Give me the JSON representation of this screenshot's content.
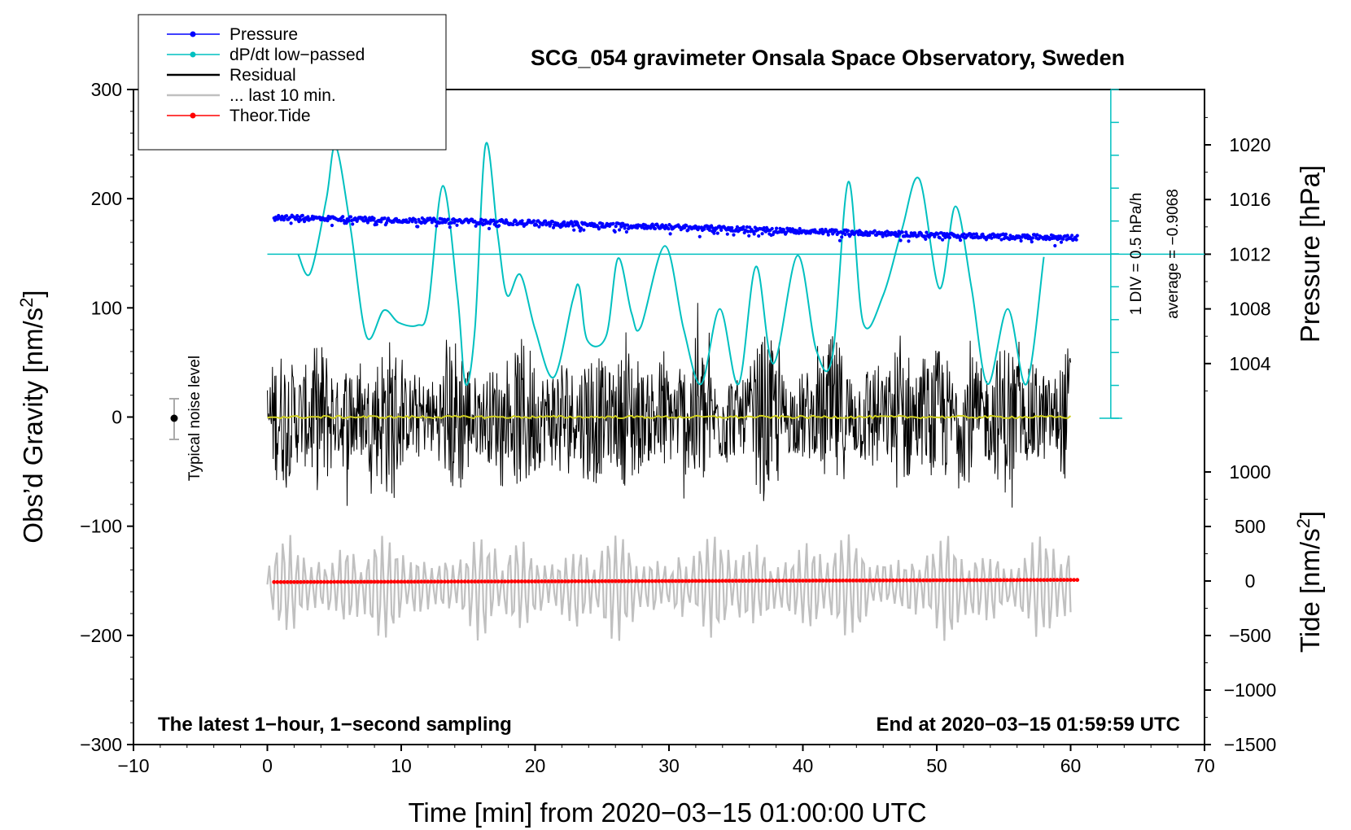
{
  "chart_data": {
    "type": "line",
    "title": "SCG_054 gravimeter Onsala Space Observatory, Sweden",
    "xlabel": "Time [min] from 2020−03−15 01:00:00 UTC",
    "ylabel_left": "Obs’d Gravity [nm/s",
    "ylabel_left_sup": "2",
    "ylabel_left_close": "]",
    "ylabel_right_pressure": "Pressure [hPa]",
    "ylabel_right_tide": "Tide [nm/s",
    "ylabel_right_tide_sup": "2",
    "ylabel_right_tide_close": "]",
    "xlim": [
      -10,
      70
    ],
    "ylim": [
      -300,
      300
    ],
    "x_ticks": [
      {
        "v": -10,
        "label": "−10"
      },
      {
        "v": 0,
        "label": "0"
      },
      {
        "v": 10,
        "label": "10"
      },
      {
        "v": 20,
        "label": "20"
      },
      {
        "v": 30,
        "label": "30"
      },
      {
        "v": 40,
        "label": "40"
      },
      {
        "v": 50,
        "label": "50"
      },
      {
        "v": 60,
        "label": "60"
      },
      {
        "v": 70,
        "label": "70"
      }
    ],
    "y_ticks": [
      {
        "v": 300,
        "label": "300"
      },
      {
        "v": 200,
        "label": "200"
      },
      {
        "v": 100,
        "label": "100"
      },
      {
        "v": 0,
        "label": "0"
      },
      {
        "v": -100,
        "label": "−100"
      },
      {
        "v": -200,
        "label": "−200"
      },
      {
        "v": -300,
        "label": "−300"
      }
    ],
    "pressure_axis": {
      "ylim": [
        1000,
        1024
      ],
      "ticks": [
        {
          "v": 1004,
          "label": "1004"
        },
        {
          "v": 1008,
          "label": "1008"
        },
        {
          "v": 1012,
          "label": "1012"
        },
        {
          "v": 1016,
          "label": "1016"
        },
        {
          "v": 1020,
          "label": "1020"
        }
      ]
    },
    "tide_axis": {
      "ylim": [
        -1500,
        1500
      ],
      "ticks": [
        {
          "v": 1000,
          "label": "1000"
        },
        {
          "v": 500,
          "label": "500"
        },
        {
          "v": 0,
          "label": "0"
        },
        {
          "v": -500,
          "label": "−500"
        },
        {
          "v": -1000,
          "label": "−1000"
        },
        {
          "v": -1500,
          "label": "−1500"
        }
      ]
    },
    "series": [
      {
        "name": "Pressure",
        "color": "#0000ff",
        "kind": "points",
        "x": [
          0.5,
          10,
          20,
          30,
          40,
          50,
          60.5
        ],
        "values": [
          1014.7,
          1014.5,
          1014.3,
          1014.0,
          1013.7,
          1013.4,
          1013.2
        ]
      },
      {
        "name": "dP/dt low−passed",
        "color": "#00c0c0",
        "kind": "line",
        "x": [
          2.3,
          3.2,
          4.4,
          5.1,
          6.2,
          7.4,
          8.7,
          9.8,
          11.2,
          12,
          13.1,
          14.2,
          14.8,
          15.5,
          16.3,
          17.2,
          17.9,
          18.9,
          20.0,
          21.4,
          22.8,
          23.3,
          23.9,
          25.3,
          26.2,
          27.2,
          27.9,
          29.7,
          31.1,
          32.4,
          33.8,
          35.2,
          36.5,
          37.8,
          39.6,
          41.0,
          42.2,
          43.4,
          44.5,
          46.0,
          47.4,
          48.7,
          50.2,
          51.4,
          52.6,
          53.8,
          55.3,
          56.7,
          58.0
        ],
        "values": [
          1012,
          1010.6,
          1016,
          1019.9,
          1014,
          1006,
          1007.9,
          1007,
          1006.8,
          1008,
          1017,
          1009,
          1002.5,
          1006.5,
          1020,
          1013.5,
          1009,
          1010.5,
          1006.5,
          1003,
          1008.6,
          1009.6,
          1005.7,
          1006,
          1011.7,
          1007.7,
          1006.7,
          1012.6,
          1006.5,
          1002.5,
          1008.0,
          1002.5,
          1011.1,
          1004,
          1011.9,
          1005,
          1004.5,
          1017.3,
          1007,
          1009,
          1013.8,
          1017.5,
          1009.5,
          1015.5,
          1009.5,
          1002.5,
          1008.0,
          1002.5,
          1011.8
        ]
      },
      {
        "name": "Residual",
        "color": "#000000",
        "kind": "noise",
        "x": [
          0,
          60
        ],
        "amplitude": 60
      },
      {
        "name": "... last 10 min.",
        "color": "#c0c0c0",
        "kind": "noise",
        "x": [
          0,
          60
        ],
        "amplitude": 500
      },
      {
        "name": "Theor.Tide",
        "color": "#ff0000",
        "kind": "points",
        "x": [
          0.5,
          60.5
        ],
        "values": [
          -10,
          10
        ]
      }
    ],
    "pressure_scale_labels": [
      "1 DIV = 0.5 hPa/h",
      "average = −0.9068"
    ],
    "noise_label": "Typical noise level",
    "footer_left": "The latest 1−hour, 1−second sampling",
    "footer_right": "End at 2020−03−15 01:59:59 UTC",
    "legend_position": "top-left"
  }
}
